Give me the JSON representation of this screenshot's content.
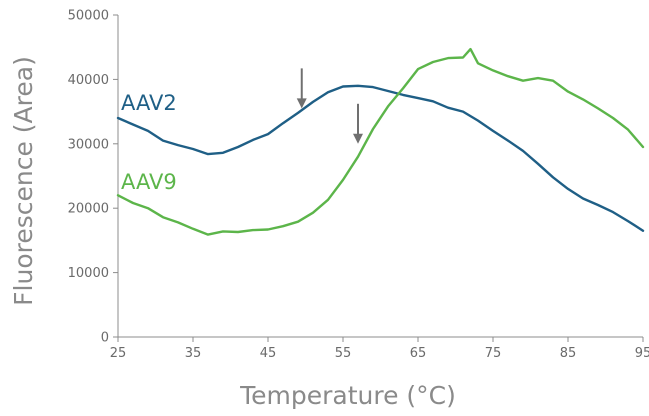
{
  "chart_data": {
    "type": "line",
    "xlabel": "Temperature (°C)",
    "ylabel": "Fluorescence (Area)",
    "xlim": [
      25,
      95
    ],
    "ylim": [
      0,
      50000
    ],
    "x_ticks": [
      "25",
      "35",
      "45",
      "55",
      "65",
      "75",
      "85",
      "95"
    ],
    "y_ticks": [
      "0",
      "10000",
      "20000",
      "30000",
      "40000",
      "50000"
    ],
    "grid": false,
    "series": [
      {
        "name": "AAV2",
        "color": "#1f5f86",
        "points": [
          [
            25,
            34000
          ],
          [
            27,
            33000
          ],
          [
            29,
            32000
          ],
          [
            31,
            30500
          ],
          [
            33,
            29800
          ],
          [
            35,
            29200
          ],
          [
            37,
            28400
          ],
          [
            39,
            28600
          ],
          [
            41,
            29500
          ],
          [
            43,
            30600
          ],
          [
            45,
            31500
          ],
          [
            47,
            33200
          ],
          [
            49,
            34800
          ],
          [
            51,
            36500
          ],
          [
            53,
            38000
          ],
          [
            55,
            38900
          ],
          [
            57,
            39000
          ],
          [
            59,
            38800
          ],
          [
            61,
            38200
          ],
          [
            63,
            37600
          ],
          [
            65,
            37100
          ],
          [
            67,
            36600
          ],
          [
            69,
            35600
          ],
          [
            71,
            35000
          ],
          [
            73,
            33600
          ],
          [
            75,
            32000
          ],
          [
            77,
            30500
          ],
          [
            79,
            28900
          ],
          [
            81,
            26900
          ],
          [
            83,
            24800
          ],
          [
            85,
            23000
          ],
          [
            87,
            21500
          ],
          [
            89,
            20500
          ],
          [
            91,
            19400
          ],
          [
            93,
            18000
          ],
          [
            95,
            16500
          ]
        ]
      },
      {
        "name": "AAV9",
        "color": "#5cb54a",
        "points": [
          [
            25,
            22000
          ],
          [
            27,
            20800
          ],
          [
            29,
            20000
          ],
          [
            31,
            18600
          ],
          [
            33,
            17800
          ],
          [
            35,
            16800
          ],
          [
            37,
            15900
          ],
          [
            39,
            16400
          ],
          [
            41,
            16300
          ],
          [
            43,
            16600
          ],
          [
            45,
            16700
          ],
          [
            47,
            17200
          ],
          [
            49,
            17900
          ],
          [
            51,
            19300
          ],
          [
            53,
            21300
          ],
          [
            55,
            24400
          ],
          [
            57,
            28000
          ],
          [
            59,
            32300
          ],
          [
            61,
            35800
          ],
          [
            63,
            38600
          ],
          [
            65,
            41600
          ],
          [
            67,
            42700
          ],
          [
            69,
            43300
          ],
          [
            71,
            43400
          ],
          [
            72,
            44700
          ],
          [
            73,
            42500
          ],
          [
            75,
            41400
          ],
          [
            77,
            40500
          ],
          [
            79,
            39800
          ],
          [
            81,
            40200
          ],
          [
            83,
            39800
          ],
          [
            85,
            38100
          ],
          [
            87,
            36900
          ],
          [
            89,
            35500
          ],
          [
            91,
            34000
          ],
          [
            93,
            32200
          ],
          [
            95,
            29500
          ]
        ]
      }
    ],
    "annotations": [
      {
        "type": "arrow",
        "x": 49.5,
        "y": 35500,
        "target_series": "AAV2"
      },
      {
        "type": "arrow",
        "x": 57,
        "y": 30000,
        "target_series": "AAV9"
      }
    ]
  }
}
